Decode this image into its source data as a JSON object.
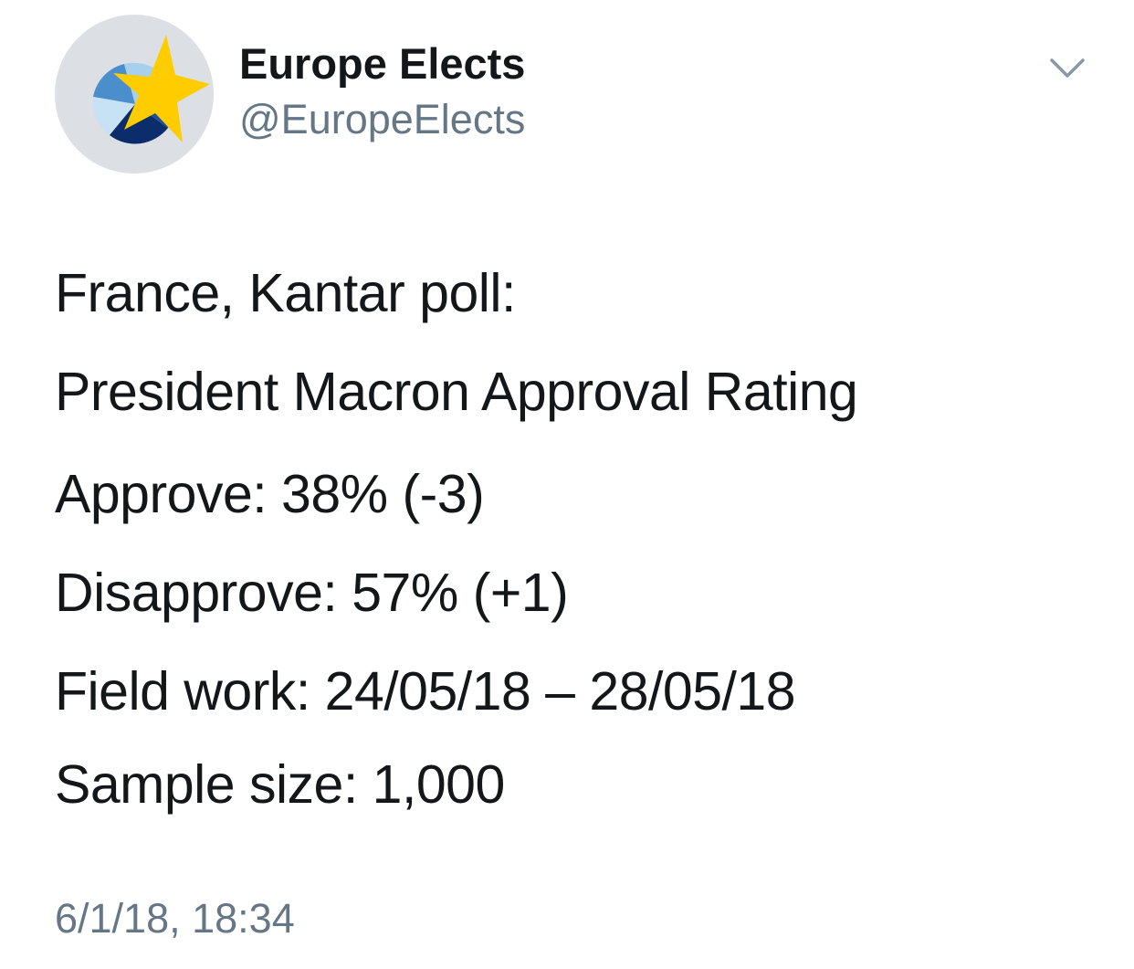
{
  "user": {
    "display_name": "Europe Elects",
    "handle": "@EuropeElects",
    "avatar_icon": "europe-elects-logo-icon"
  },
  "menu": {
    "icon": "chevron-down-icon"
  },
  "tweet": {
    "line_1": "France, Kantar poll:",
    "line_2": "President Macron Approval Rating",
    "line_3": "Approve: 38% (-3)",
    "line_4": "Disapprove: 57% (+1)",
    "line_5": "Field work: 24/05/18 – 28/05/18",
    "line_6": "Sample size: 1,000",
    "timestamp": "6/1/18, 18:34"
  },
  "colors": {
    "text_primary": "#14171a",
    "text_secondary": "#657786",
    "avatar_bg": "#dcdfe4",
    "star_yellow": "#ffcc00",
    "pie_dark_blue": "#0b2d6b",
    "pie_mid_blue": "#3b7fc4",
    "pie_light_blue": "#9ec9ec"
  }
}
